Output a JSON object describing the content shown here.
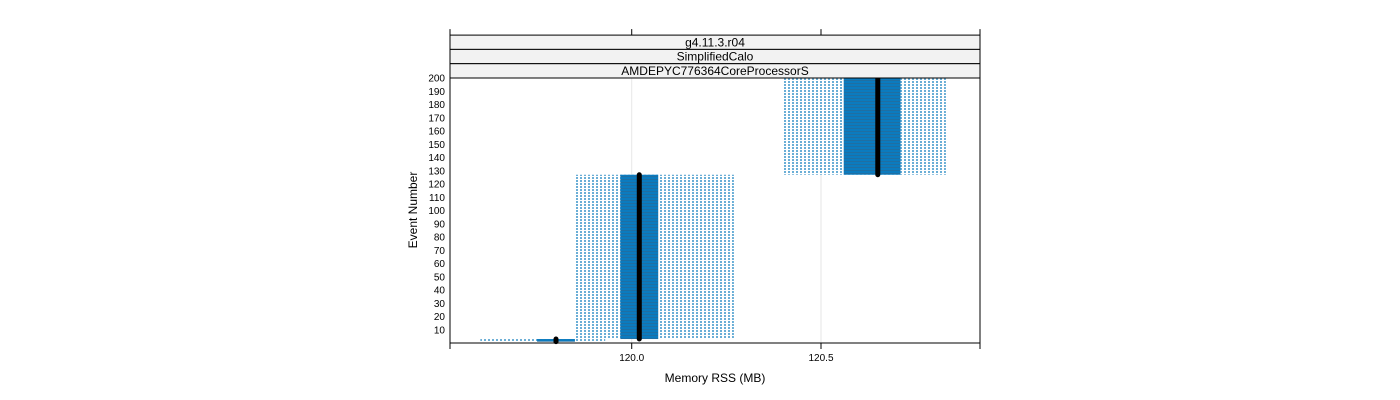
{
  "chart_data": {
    "type": "bar",
    "strips": [
      "g4.11.3.r04",
      "SimplifiedCalo",
      "AMDEPYC776364CoreProcessorS"
    ],
    "xlabel": "Memory RSS (MB)",
    "ylabel": "Event Number",
    "xlim": [
      119.52,
      120.92
    ],
    "ylim": [
      0,
      200
    ],
    "x_ticks": [
      {
        "value": 120.0,
        "label": "120.0"
      },
      {
        "value": 120.5,
        "label": "120.5"
      }
    ],
    "y_ticks": [
      10,
      20,
      30,
      40,
      50,
      60,
      70,
      80,
      90,
      100,
      110,
      120,
      130,
      140,
      150,
      160,
      170,
      180,
      190,
      200
    ],
    "grid": true,
    "segments": [
      {
        "y_start": 1,
        "y_end": 3,
        "outer_min": 119.6,
        "outer_max": 119.93,
        "inner_min": 119.75,
        "inner_max": 119.85,
        "median": 119.8
      },
      {
        "y_start": 3,
        "y_end": 127,
        "outer_min": 119.85,
        "outer_max": 120.27,
        "inner_min": 119.97,
        "inner_max": 120.07,
        "median": 120.02
      },
      {
        "y_start": 127,
        "y_end": 200,
        "outer_min": 120.4,
        "outer_max": 120.83,
        "inner_min": 120.56,
        "inner_max": 120.71,
        "median": 120.65
      }
    ],
    "colors": {
      "inner": "#0b7bbf",
      "outer": "#6aaed6",
      "median": "#000000"
    }
  }
}
